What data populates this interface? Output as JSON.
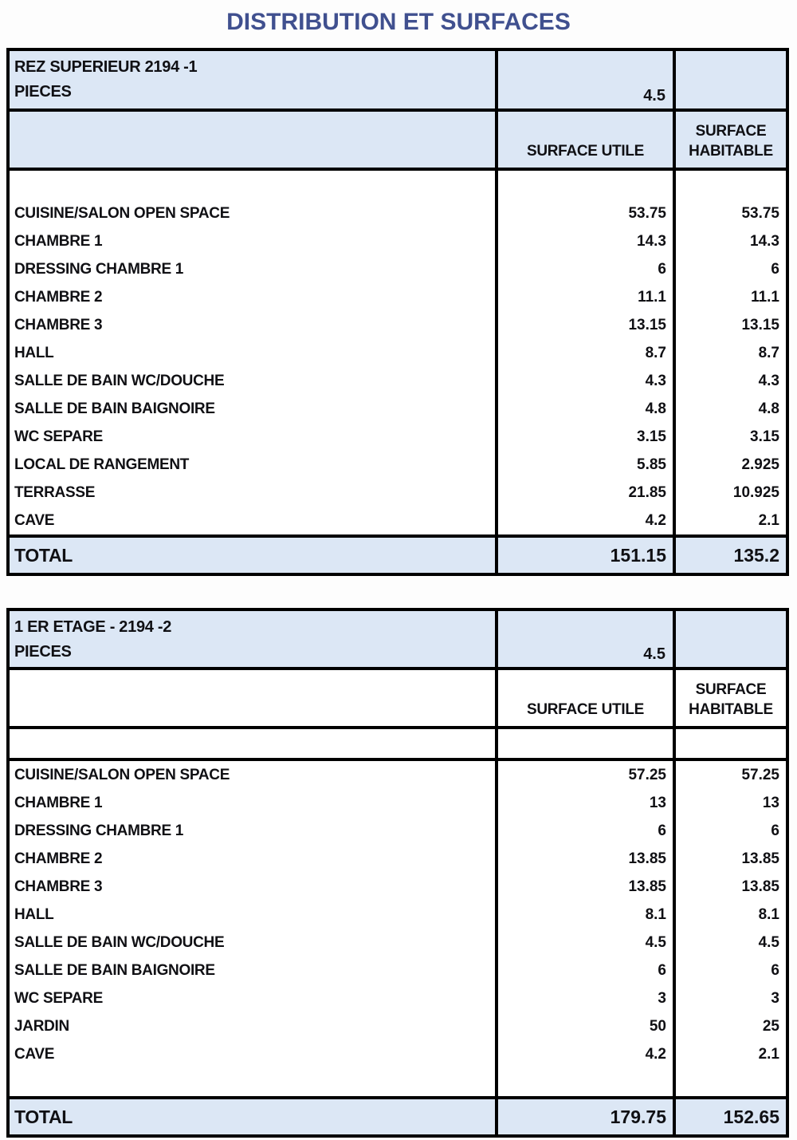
{
  "page": {
    "title": "DISTRIBUTION ET SURFACES"
  },
  "colors": {
    "header_fill": "#dce7f5",
    "title_text": "#40508f",
    "border": "#000000"
  },
  "tables": [
    {
      "block_title": "REZ SUPERIEUR 2194 -1",
      "pieces_label": "PIECES",
      "pieces_value": "4.5",
      "col2_header": "SURFACE UTILE",
      "col3_header": "SURFACE HABITABLE",
      "rows": [
        {
          "label": "CUISINE/SALON OPEN SPACE",
          "utile": "53.75",
          "habitable": "53.75"
        },
        {
          "label": "CHAMBRE 1",
          "utile": "14.3",
          "habitable": "14.3"
        },
        {
          "label": "DRESSING CHAMBRE 1",
          "utile": "6",
          "habitable": "6"
        },
        {
          "label": "CHAMBRE 2",
          "utile": "11.1",
          "habitable": "11.1"
        },
        {
          "label": "CHAMBRE 3",
          "utile": "13.15",
          "habitable": "13.15"
        },
        {
          "label": "HALL",
          "utile": "8.7",
          "habitable": "8.7"
        },
        {
          "label": "SALLE DE BAIN WC/DOUCHE",
          "utile": "4.3",
          "habitable": "4.3"
        },
        {
          "label": "SALLE DE BAIN BAIGNOIRE",
          "utile": "4.8",
          "habitable": "4.8"
        },
        {
          "label": "WC SEPARE",
          "utile": "3.15",
          "habitable": "3.15"
        },
        {
          "label": "LOCAL DE RANGEMENT",
          "utile": "5.85",
          "habitable": "2.925"
        },
        {
          "label": "TERRASSE",
          "utile": "21.85",
          "habitable": "10.925"
        },
        {
          "label": "CAVE",
          "utile": "4.2",
          "habitable": "2.1"
        }
      ],
      "total": {
        "label": "TOTAL",
        "utile": "151.15",
        "habitable": "135.2"
      }
    },
    {
      "block_title": "1 ER ETAGE - 2194 -2",
      "pieces_label": "PIECES",
      "pieces_value": "4.5",
      "col2_header": "SURFACE UTILE",
      "col3_header": "SURFACE HABITABLE",
      "rows": [
        {
          "label": "CUISINE/SALON OPEN SPACE",
          "utile": "57.25",
          "habitable": "57.25"
        },
        {
          "label": "CHAMBRE 1",
          "utile": "13",
          "habitable": "13"
        },
        {
          "label": "DRESSING CHAMBRE 1",
          "utile": "6",
          "habitable": "6"
        },
        {
          "label": "CHAMBRE 2",
          "utile": "13.85",
          "habitable": "13.85"
        },
        {
          "label": "CHAMBRE 3",
          "utile": "13.85",
          "habitable": "13.85"
        },
        {
          "label": "HALL",
          "utile": "8.1",
          "habitable": "8.1"
        },
        {
          "label": "SALLE DE BAIN WC/DOUCHE",
          "utile": "4.5",
          "habitable": "4.5"
        },
        {
          "label": "SALLE DE BAIN BAIGNOIRE",
          "utile": "6",
          "habitable": "6"
        },
        {
          "label": "WC SEPARE",
          "utile": "3",
          "habitable": "3"
        },
        {
          "label": "JARDIN",
          "utile": "50",
          "habitable": "25"
        },
        {
          "label": "CAVE",
          "utile": "4.2",
          "habitable": "2.1"
        }
      ],
      "total": {
        "label": "TOTAL",
        "utile": "179.75",
        "habitable": "152.65"
      }
    }
  ]
}
